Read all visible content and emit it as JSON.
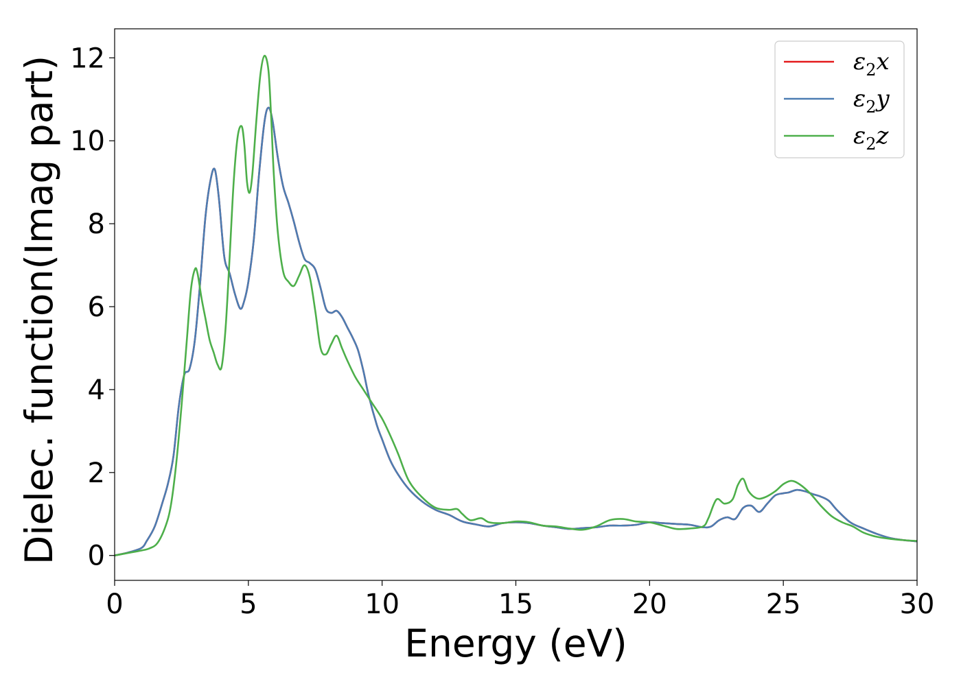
{
  "chart_data": {
    "type": "line",
    "title": "",
    "xlabel": "Energy (eV)",
    "ylabel": "Dielec. function(Imag part)",
    "xlim": [
      0,
      30
    ],
    "ylim": [
      -0.6,
      12.7
    ],
    "xticks": [
      0,
      5,
      10,
      15,
      20,
      25,
      30
    ],
    "yticks": [
      0,
      2,
      4,
      6,
      8,
      10,
      12
    ],
    "grid": false,
    "legend_position": "top-right",
    "series": [
      {
        "name": "ε2x",
        "legend_base": "ε",
        "legend_sub": "2",
        "legend_tail": "x",
        "color": "#e41a1c",
        "x": [
          0,
          0.5,
          1.0,
          1.2,
          1.5,
          1.8,
          2.0,
          2.2,
          2.4,
          2.6,
          2.8,
          3.0,
          3.2,
          3.4,
          3.6,
          3.75,
          3.9,
          4.1,
          4.3,
          4.5,
          4.7,
          4.85,
          5.0,
          5.2,
          5.4,
          5.6,
          5.75,
          5.9,
          6.1,
          6.3,
          6.5,
          6.7,
          6.9,
          7.1,
          7.3,
          7.5,
          7.7,
          7.9,
          8.1,
          8.3,
          8.5,
          8.7,
          8.9,
          9.1,
          9.3,
          9.5,
          9.8,
          10.0,
          10.3,
          10.6,
          11.0,
          11.5,
          12.0,
          12.5,
          13.0,
          13.5,
          14.0,
          14.5,
          15.0,
          15.5,
          16.0,
          16.5,
          17.0,
          17.5,
          18.0,
          18.5,
          19.0,
          19.5,
          20.0,
          20.5,
          21.0,
          21.5,
          22.0,
          22.3,
          22.6,
          22.9,
          23.2,
          23.5,
          23.8,
          24.1,
          24.4,
          24.7,
          25.0,
          25.2,
          25.5,
          25.8,
          26.1,
          26.4,
          26.7,
          27.0,
          27.5,
          28.0,
          28.5,
          29.0,
          29.5,
          30.0
        ],
        "y": [
          0,
          0.07,
          0.18,
          0.35,
          0.7,
          1.3,
          1.75,
          2.4,
          3.6,
          4.35,
          4.5,
          5.2,
          6.6,
          8.2,
          9.1,
          9.3,
          8.6,
          7.2,
          6.8,
          6.3,
          5.95,
          6.15,
          6.6,
          7.6,
          9.2,
          10.45,
          10.8,
          10.5,
          9.6,
          8.9,
          8.5,
          8.05,
          7.55,
          7.15,
          7.05,
          6.9,
          6.45,
          5.95,
          5.85,
          5.9,
          5.75,
          5.5,
          5.25,
          4.95,
          4.45,
          3.85,
          3.15,
          2.8,
          2.3,
          1.95,
          1.6,
          1.3,
          1.1,
          0.98,
          0.82,
          0.75,
          0.7,
          0.78,
          0.8,
          0.78,
          0.72,
          0.68,
          0.64,
          0.66,
          0.68,
          0.72,
          0.72,
          0.74,
          0.8,
          0.78,
          0.76,
          0.74,
          0.68,
          0.7,
          0.85,
          0.92,
          0.88,
          1.15,
          1.2,
          1.05,
          1.25,
          1.45,
          1.5,
          1.52,
          1.58,
          1.55,
          1.48,
          1.42,
          1.32,
          1.1,
          0.8,
          0.65,
          0.52,
          0.42,
          0.37,
          0.34
        ]
      },
      {
        "name": "ε2y",
        "legend_base": "ε",
        "legend_sub": "2",
        "legend_tail": "y",
        "color": "#4c7db2",
        "x": [
          0,
          0.5,
          1.0,
          1.2,
          1.5,
          1.8,
          2.0,
          2.2,
          2.4,
          2.6,
          2.8,
          3.0,
          3.2,
          3.4,
          3.6,
          3.75,
          3.9,
          4.1,
          4.3,
          4.5,
          4.7,
          4.85,
          5.0,
          5.2,
          5.4,
          5.6,
          5.75,
          5.9,
          6.1,
          6.3,
          6.5,
          6.7,
          6.9,
          7.1,
          7.3,
          7.5,
          7.7,
          7.9,
          8.1,
          8.3,
          8.5,
          8.7,
          8.9,
          9.1,
          9.3,
          9.5,
          9.8,
          10.0,
          10.3,
          10.6,
          11.0,
          11.5,
          12.0,
          12.5,
          13.0,
          13.5,
          14.0,
          14.5,
          15.0,
          15.5,
          16.0,
          16.5,
          17.0,
          17.5,
          18.0,
          18.5,
          19.0,
          19.5,
          20.0,
          20.5,
          21.0,
          21.5,
          22.0,
          22.3,
          22.6,
          22.9,
          23.2,
          23.5,
          23.8,
          24.1,
          24.4,
          24.7,
          25.0,
          25.2,
          25.5,
          25.8,
          26.1,
          26.4,
          26.7,
          27.0,
          27.5,
          28.0,
          28.5,
          29.0,
          29.5,
          30.0
        ],
        "y": [
          0,
          0.07,
          0.18,
          0.35,
          0.7,
          1.3,
          1.75,
          2.4,
          3.6,
          4.35,
          4.5,
          5.2,
          6.6,
          8.2,
          9.1,
          9.3,
          8.6,
          7.2,
          6.8,
          6.3,
          5.95,
          6.15,
          6.6,
          7.6,
          9.2,
          10.45,
          10.8,
          10.5,
          9.6,
          8.9,
          8.5,
          8.05,
          7.55,
          7.15,
          7.05,
          6.9,
          6.45,
          5.95,
          5.85,
          5.9,
          5.75,
          5.5,
          5.25,
          4.95,
          4.45,
          3.85,
          3.15,
          2.8,
          2.3,
          1.95,
          1.6,
          1.3,
          1.1,
          0.98,
          0.82,
          0.75,
          0.7,
          0.78,
          0.8,
          0.78,
          0.72,
          0.68,
          0.64,
          0.66,
          0.68,
          0.72,
          0.72,
          0.74,
          0.8,
          0.78,
          0.76,
          0.74,
          0.68,
          0.7,
          0.85,
          0.92,
          0.88,
          1.15,
          1.2,
          1.05,
          1.25,
          1.45,
          1.5,
          1.52,
          1.58,
          1.55,
          1.48,
          1.42,
          1.32,
          1.1,
          0.8,
          0.65,
          0.52,
          0.42,
          0.37,
          0.34
        ]
      },
      {
        "name": "ε2z",
        "legend_base": "ε",
        "legend_sub": "2",
        "legend_tail": "z",
        "color": "#4daf4a",
        "x": [
          0,
          0.5,
          1.0,
          1.3,
          1.6,
          1.9,
          2.1,
          2.3,
          2.5,
          2.7,
          2.85,
          3.0,
          3.1,
          3.25,
          3.4,
          3.55,
          3.7,
          3.85,
          4.0,
          4.15,
          4.3,
          4.45,
          4.6,
          4.75,
          4.85,
          4.95,
          5.05,
          5.15,
          5.3,
          5.45,
          5.6,
          5.75,
          5.85,
          5.95,
          6.1,
          6.3,
          6.5,
          6.7,
          6.9,
          7.1,
          7.3,
          7.5,
          7.7,
          7.9,
          8.1,
          8.3,
          8.5,
          8.7,
          9.0,
          9.3,
          9.6,
          10.0,
          10.3,
          10.6,
          11.0,
          11.5,
          12.0,
          12.5,
          12.8,
          13.0,
          13.3,
          13.7,
          14.0,
          14.5,
          15.0,
          15.5,
          16.0,
          16.5,
          17.0,
          17.5,
          18.0,
          18.5,
          19.0,
          19.5,
          20.0,
          20.5,
          21.0,
          21.5,
          22.0,
          22.2,
          22.5,
          22.8,
          23.1,
          23.3,
          23.5,
          23.7,
          24.0,
          24.3,
          24.7,
          25.0,
          25.3,
          25.6,
          26.0,
          26.4,
          26.8,
          27.2,
          27.6,
          28.0,
          28.5,
          29.0,
          29.5,
          30.0
        ],
        "y": [
          0,
          0.06,
          0.12,
          0.17,
          0.3,
          0.7,
          1.2,
          2.2,
          3.6,
          5.2,
          6.4,
          6.9,
          6.8,
          6.2,
          5.7,
          5.2,
          4.9,
          4.6,
          4.55,
          5.5,
          7.2,
          9.0,
          10.1,
          10.35,
          9.9,
          9.0,
          8.75,
          9.2,
          10.5,
          11.6,
          12.05,
          11.7,
          10.6,
          9.2,
          7.8,
          6.85,
          6.6,
          6.5,
          6.75,
          7.0,
          6.7,
          5.9,
          5.0,
          4.85,
          5.1,
          5.3,
          5.0,
          4.7,
          4.3,
          4.0,
          3.7,
          3.3,
          2.9,
          2.45,
          1.8,
          1.4,
          1.15,
          1.1,
          1.12,
          1.0,
          0.85,
          0.9,
          0.8,
          0.78,
          0.82,
          0.8,
          0.72,
          0.7,
          0.65,
          0.62,
          0.7,
          0.85,
          0.88,
          0.82,
          0.8,
          0.72,
          0.64,
          0.65,
          0.7,
          0.9,
          1.35,
          1.25,
          1.35,
          1.7,
          1.85,
          1.55,
          1.38,
          1.4,
          1.55,
          1.72,
          1.8,
          1.72,
          1.5,
          1.2,
          0.95,
          0.8,
          0.7,
          0.55,
          0.45,
          0.4,
          0.37,
          0.35
        ]
      }
    ]
  }
}
